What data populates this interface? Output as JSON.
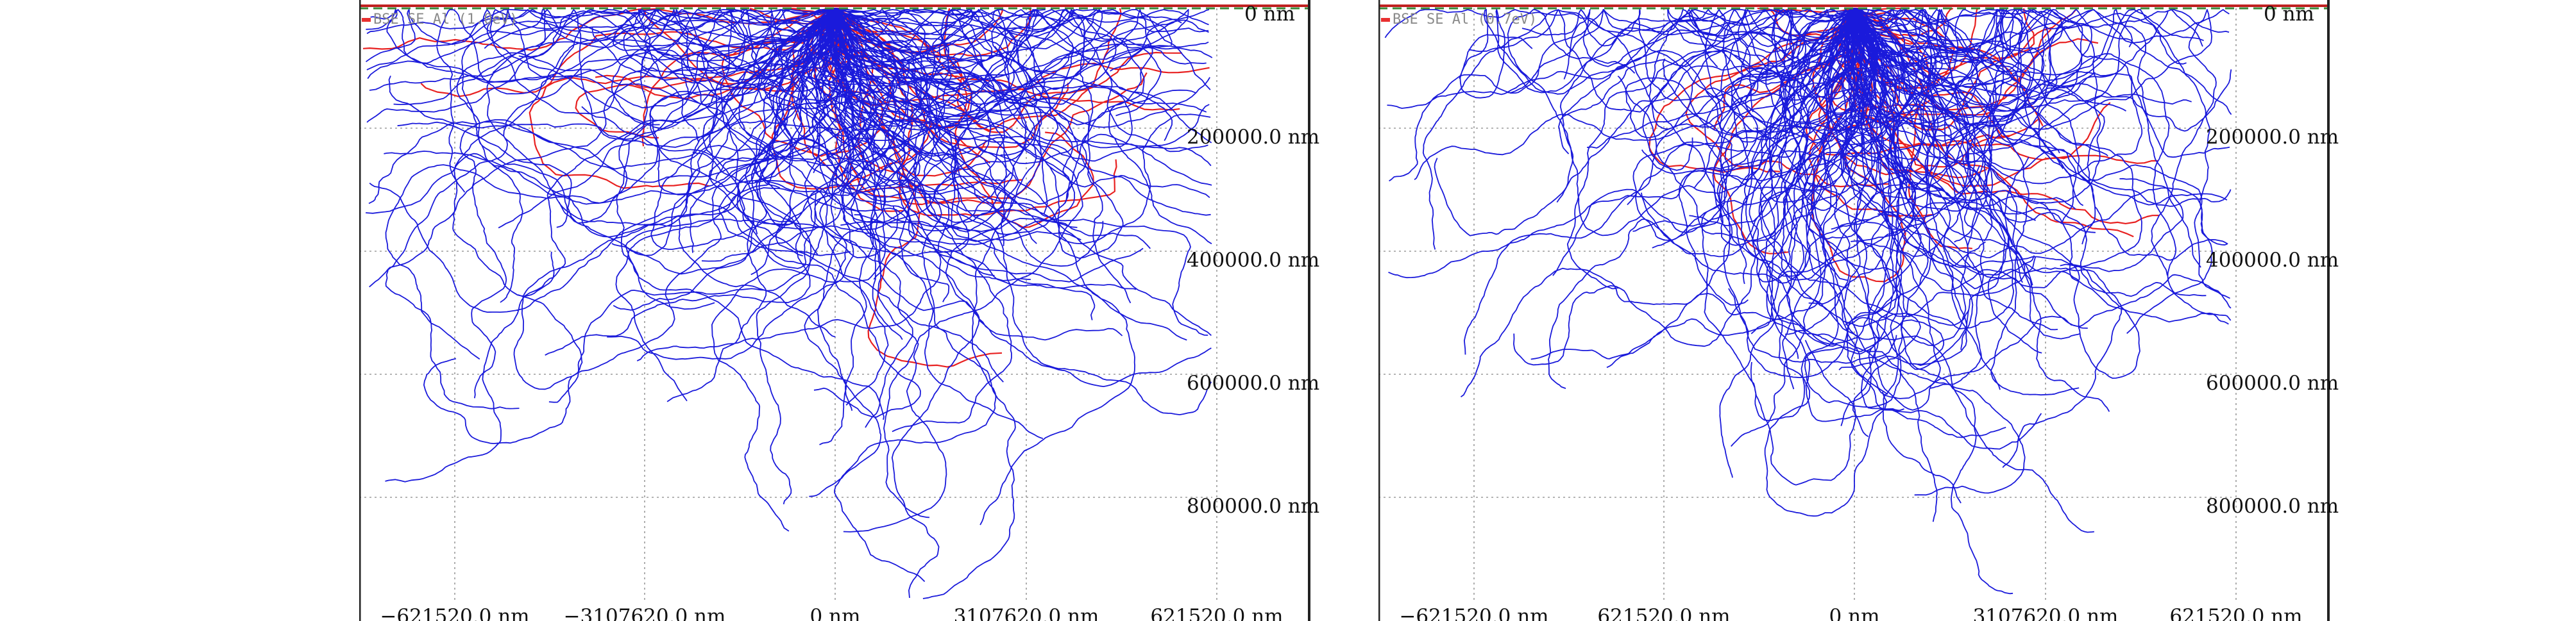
{
  "panels": [
    {
      "legend": {
        "items": [
          "BSE",
          "SE",
          "Al"
        ],
        "energy": "(1.0eV)",
        "colors": {
          "BSE": "#e83030",
          "SE": "#3a9a3a",
          "Al": "#333333"
        }
      },
      "y_ticks": [
        "0 nm",
        "200000.0 nm",
        "400000.0 nm",
        "600000.0 nm",
        "800000.0 nm"
      ],
      "x_ticks": [
        "−621520.0 nm",
        "−3107620.0 nm",
        "0 nm",
        "3107620.0 nm",
        "621520.0 nm"
      ]
    },
    {
      "legend": {
        "items": [
          "BSE",
          "SE",
          "Al"
        ],
        "energy": "(0.7eV)",
        "colors": {
          "BSE": "#e83030",
          "SE": "#3a9a3a",
          "Al": "#333333"
        }
      },
      "y_ticks": [
        "0 nm",
        "200000.0 nm",
        "400000.0 nm",
        "600000.0 nm",
        "800000.0 nm"
      ],
      "x_ticks": [
        "−621520.0 nm",
        "621520.0 nm",
        "0 nm",
        "3107620.0 nm",
        "621520.0 nm"
      ]
    }
  ],
  "colors": {
    "primary_trajectory": "#1a1adb",
    "backscatter_trajectory": "#e82020",
    "grid": "#9a9a9a",
    "surface_dash": "#3a8a3a",
    "surface_line": "#c02020",
    "axis": "#222222"
  }
}
